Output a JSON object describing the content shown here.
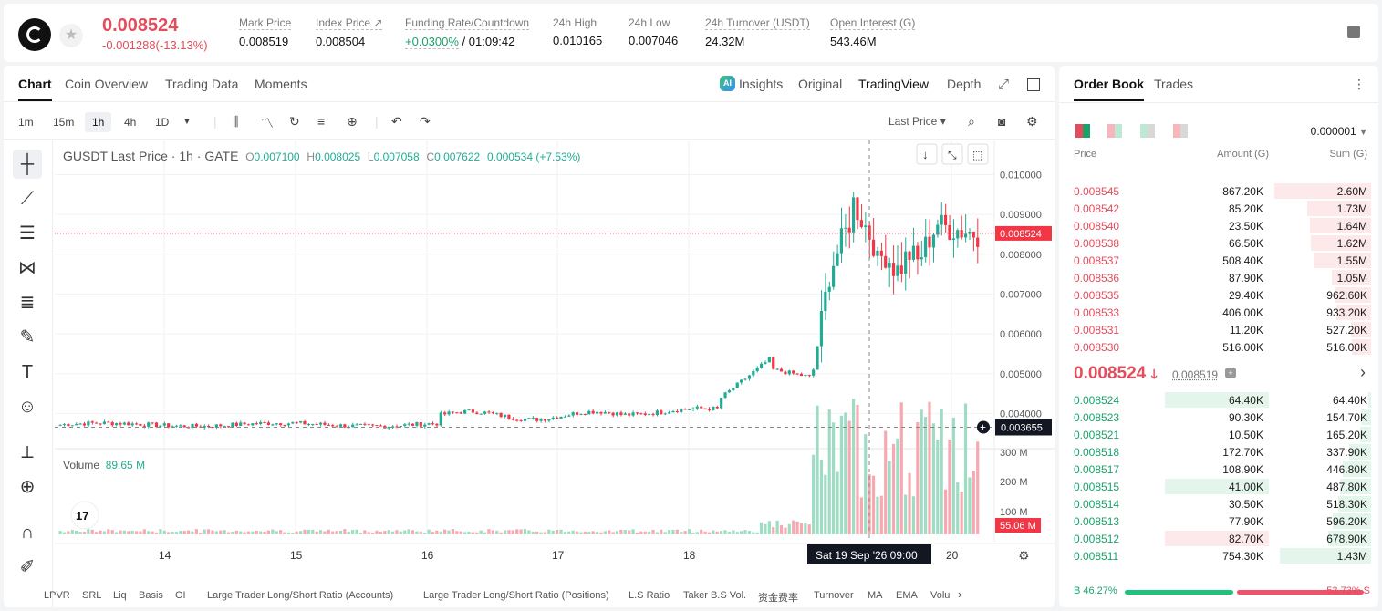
{
  "header": {
    "price": "0.008524",
    "change": "-0.001288(-13.13%)",
    "stats": [
      {
        "label": "Mark Price",
        "value": "0.008519"
      },
      {
        "label": "Index Price ↗",
        "value": "0.008504"
      },
      {
        "label": "Funding Rate/Countdown",
        "value_green": "+0.0300%",
        "value_rest": "/ 01:09:42"
      },
      {
        "label": "24h High",
        "value": "0.010165"
      },
      {
        "label": "24h Low",
        "value": "0.007046"
      },
      {
        "label": "24h Turnover (USDT)",
        "value": "24.32M"
      },
      {
        "label": "Open Interest (G)",
        "value": "543.46M"
      }
    ]
  },
  "chart_tabs": [
    "Chart",
    "Coin Overview",
    "Trading Data",
    "Moments"
  ],
  "views": {
    "insights": "Insights",
    "original": "Original",
    "tradingview": "TradingView",
    "depth": "Depth"
  },
  "ai_badge": "AI",
  "timeframes": [
    "1m",
    "15m",
    "1h",
    "4h",
    "1D"
  ],
  "last_price_label": "Last Price",
  "legend": {
    "title": "GUSDT Last Price · 1h · GATE",
    "o": "0.007100",
    "h": "0.008025",
    "l": "0.007058",
    "c": "0.007622",
    "chg": "0.000534 (+7.53%)"
  },
  "volume_legend": {
    "label": "Volume",
    "value": "89.65 M"
  },
  "crosshair_label": "Sat 19 Sep '26   09:00",
  "tv_logo": "17",
  "bottom_indicators": [
    "LPVR",
    "SRL",
    "Liq",
    "Basis",
    "OI",
    "Large Trader Long/Short Ratio (Accounts)",
    "Large Trader Long/Short Ratio (Positions)",
    "L.S Ratio",
    "Taker B.S Vol.",
    "资金费率",
    "Turnover",
    "MA",
    "EMA",
    "Volu"
  ],
  "chart_data": {
    "type": "candlestick",
    "title": "GUSDT Last Price · 1h · GATE",
    "x_ticks": [
      "14",
      "15",
      "16",
      "17",
      "18",
      "20"
    ],
    "y_ticks": [
      "0.010000",
      "0.009000",
      "0.008000",
      "0.007000",
      "0.006000",
      "0.005000",
      "0.004000"
    ],
    "ylim": [
      0.0033,
      0.0104
    ],
    "last_price_tag": "0.008524",
    "crosshair_price_tag": "0.003655",
    "volume_ticks": [
      "300 M",
      "200 M",
      "100 M"
    ],
    "volume_last_tag": "55.06 M",
    "colors": {
      "up": "#22ab94",
      "down": "#f23645",
      "up_vol": "#9fdcc4",
      "down_vol": "#f7a9b2"
    }
  },
  "orderbook": {
    "tabs": [
      "Order Book",
      "Trades"
    ],
    "precision": "0.000001",
    "headers": {
      "price": "Price",
      "amount": "Amount (G)",
      "sum": "Sum (G)"
    },
    "asks": [
      {
        "p": "0.008545",
        "a": "867.20K",
        "s": "2.60M",
        "w": 106
      },
      {
        "p": "0.008542",
        "a": "85.20K",
        "s": "1.73M",
        "w": 70
      },
      {
        "p": "0.008540",
        "a": "23.50K",
        "s": "1.64M",
        "w": 67
      },
      {
        "p": "0.008538",
        "a": "66.50K",
        "s": "1.62M",
        "w": 66
      },
      {
        "p": "0.008537",
        "a": "508.40K",
        "s": "1.55M",
        "w": 63
      },
      {
        "p": "0.008536",
        "a": "87.90K",
        "s": "1.05M",
        "w": 43
      },
      {
        "p": "0.008535",
        "a": "29.40K",
        "s": "962.60K",
        "w": 39
      },
      {
        "p": "0.008533",
        "a": "406.00K",
        "s": "933.20K",
        "w": 38
      },
      {
        "p": "0.008531",
        "a": "11.20K",
        "s": "527.20K",
        "w": 22
      },
      {
        "p": "0.008530",
        "a": "516.00K",
        "s": "516.00K",
        "w": 21
      }
    ],
    "mid": {
      "price": "0.008524",
      "mark": "0.008519"
    },
    "bids": [
      {
        "p": "0.008524",
        "a": "64.40K",
        "s": "64.40K",
        "w": 3,
        "hl": "green"
      },
      {
        "p": "0.008523",
        "a": "90.30K",
        "s": "154.70K",
        "w": 11
      },
      {
        "p": "0.008521",
        "a": "10.50K",
        "s": "165.20K",
        "w": 12
      },
      {
        "p": "0.008518",
        "a": "172.70K",
        "s": "337.90K",
        "w": 24
      },
      {
        "p": "0.008517",
        "a": "108.90K",
        "s": "446.80K",
        "w": 31
      },
      {
        "p": "0.008515",
        "a": "41.00K",
        "s": "487.80K",
        "w": 34,
        "hl": "green"
      },
      {
        "p": "0.008514",
        "a": "30.50K",
        "s": "518.30K",
        "w": 36
      },
      {
        "p": "0.008513",
        "a": "77.90K",
        "s": "596.20K",
        "w": 42
      },
      {
        "p": "0.008512",
        "a": "82.70K",
        "s": "678.90K",
        "w": 47,
        "hl": "red"
      },
      {
        "p": "0.008511",
        "a": "754.30K",
        "s": "1.43M",
        "w": 100
      }
    ],
    "ratio": {
      "buy": "B 46.27%",
      "sell": "53.73% S",
      "buy_frac": 0.4627
    }
  }
}
